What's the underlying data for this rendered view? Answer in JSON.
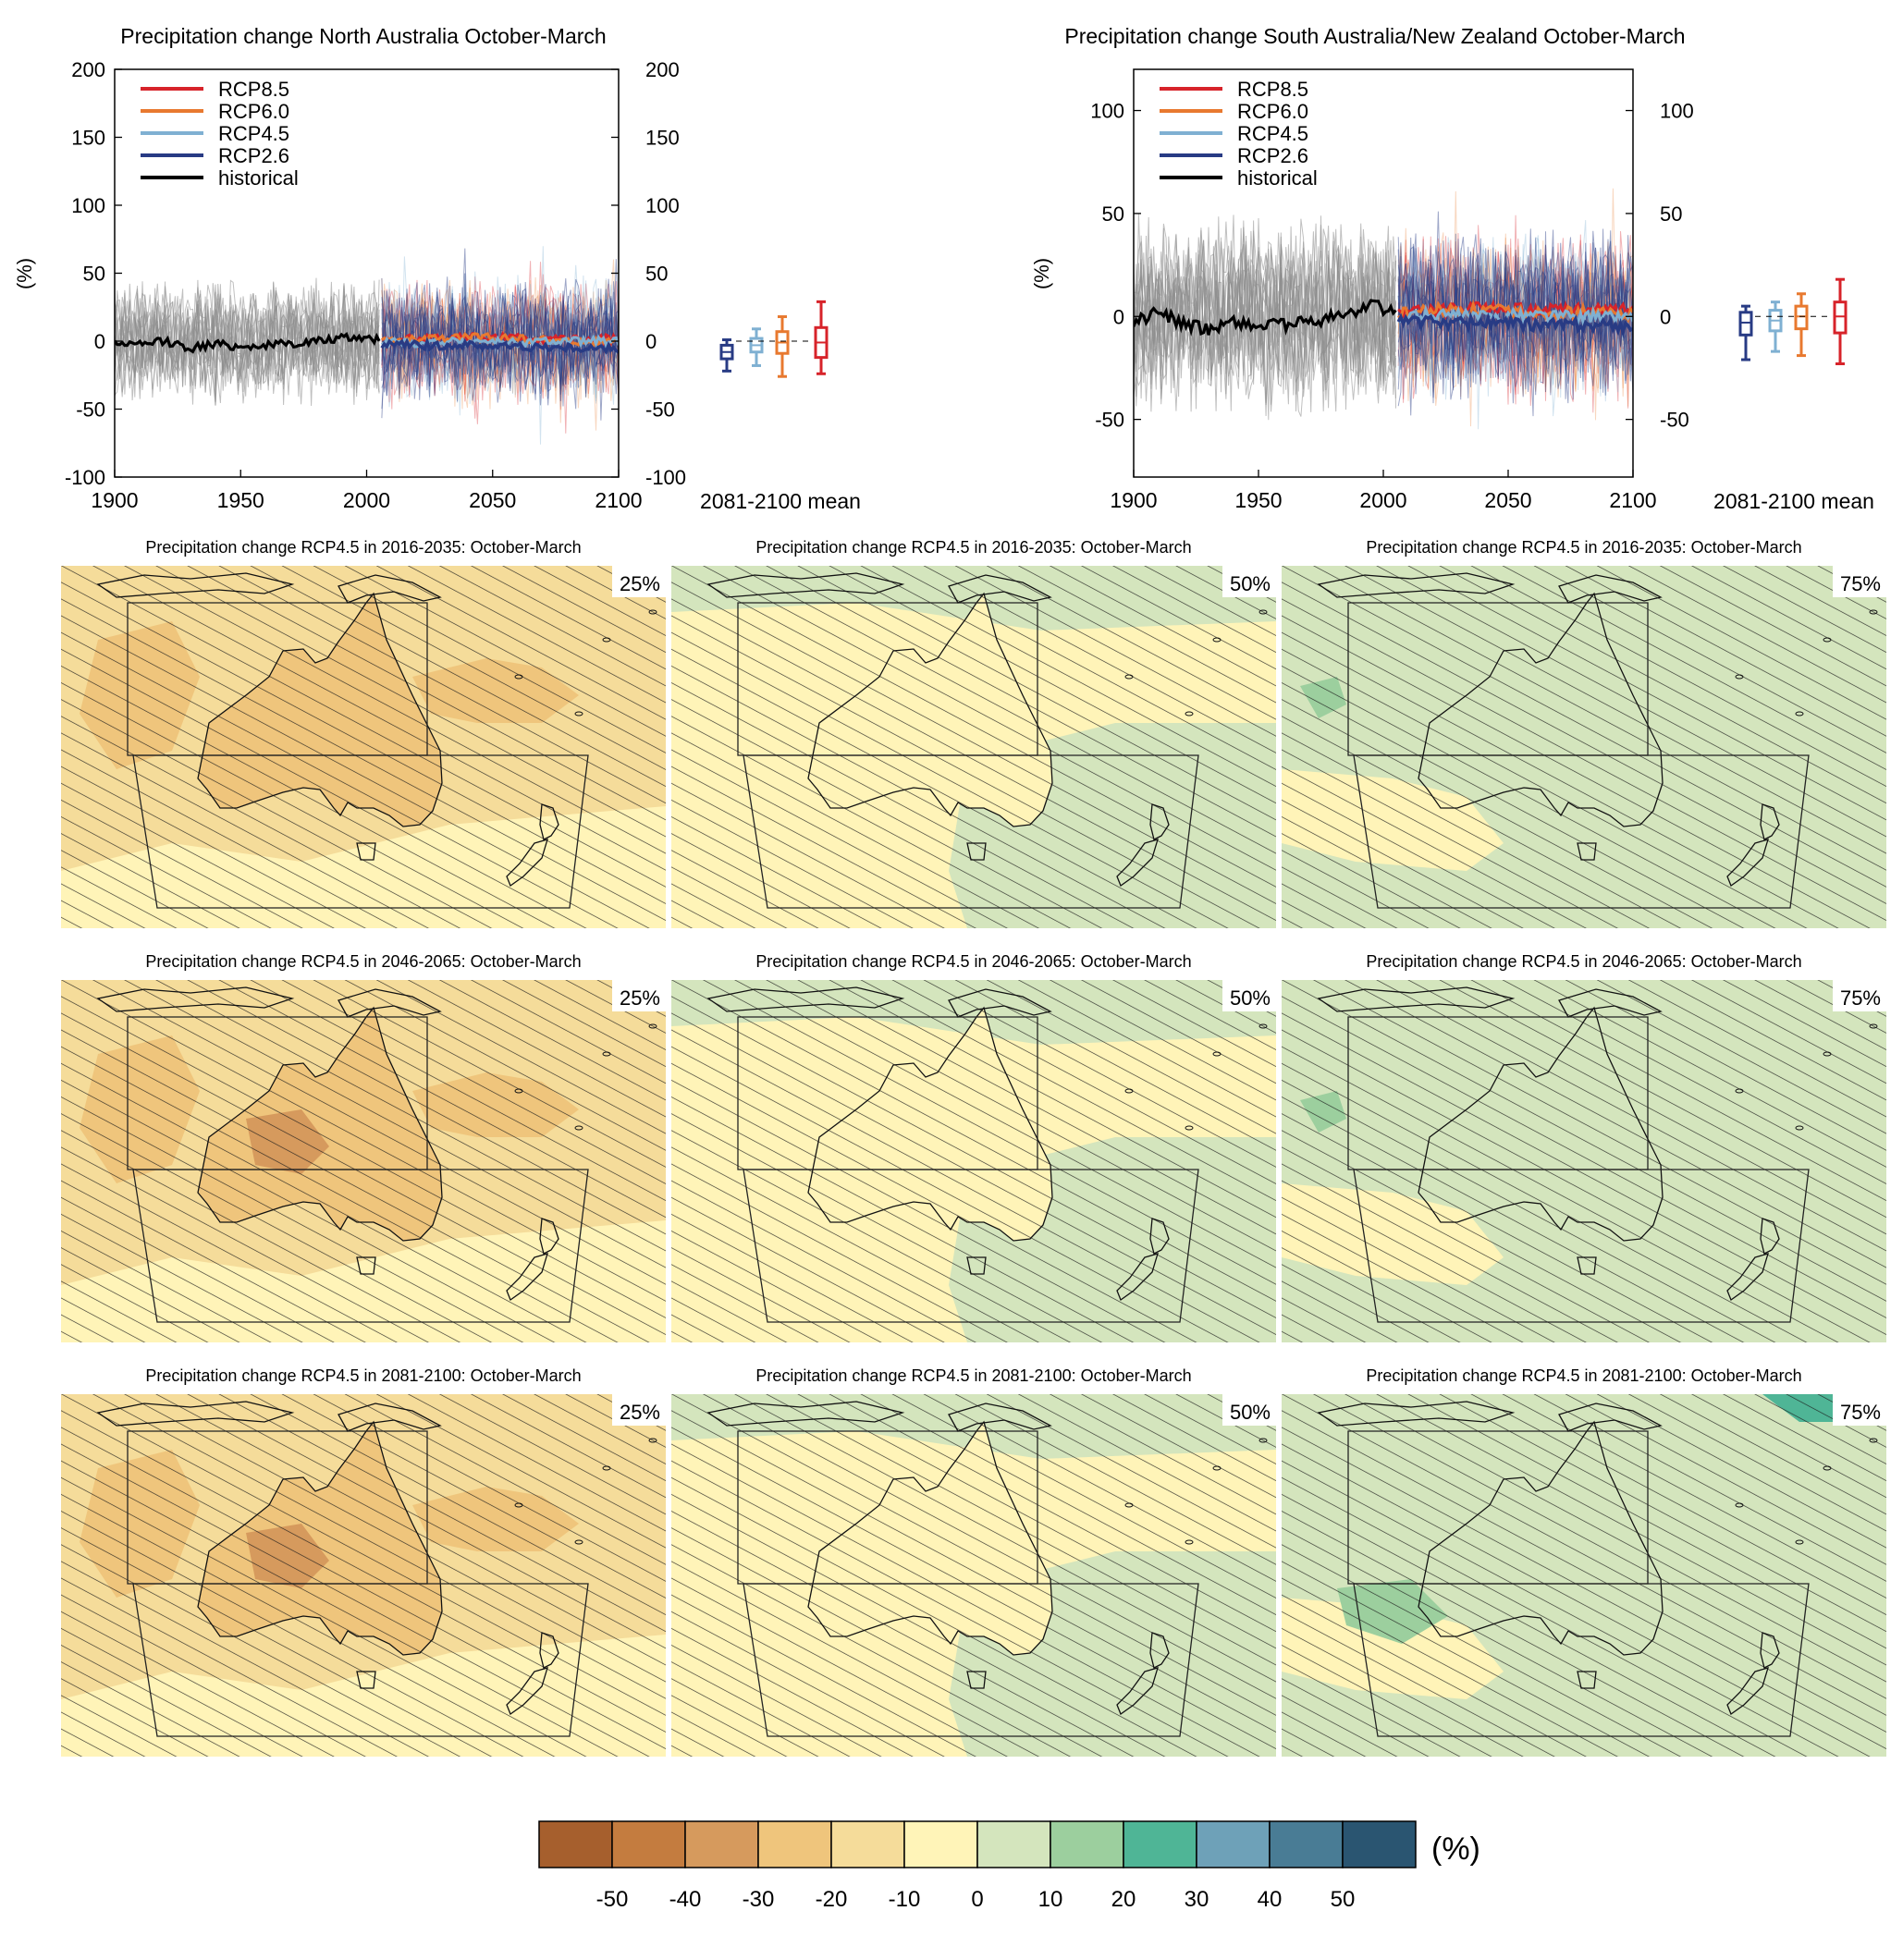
{
  "figure": {
    "series_colors": {
      "rcp85": "#d7232a",
      "rcp60": "#e8792f",
      "rcp45": "#7fb0d2",
      "rcp26": "#283b84",
      "historical": "#000000",
      "historical_spread": "#8c8c8c"
    }
  },
  "chart_data": [
    {
      "id": "north",
      "type": "line",
      "title": "Precipitation change North Australia October-March",
      "ylabel": "(%)",
      "xlim": [
        1900,
        2100
      ],
      "ylim": [
        -100,
        200
      ],
      "xticks": [
        1900,
        1950,
        2000,
        2050,
        2100
      ],
      "yticks": [
        -100,
        -50,
        0,
        50,
        100,
        150,
        200
      ],
      "legend": {
        "placement": "top-left",
        "entries": [
          "RCP8.5",
          "RCP6.0",
          "RCP4.5",
          "RCP2.6",
          "historical"
        ]
      },
      "historical_mean": {
        "x": [
          1900,
          1910,
          1920,
          1930,
          1940,
          1950,
          1960,
          1970,
          1980,
          1990,
          2000,
          2005
        ],
        "y": [
          -1,
          -3,
          0,
          -5,
          -2,
          -4,
          -3,
          -2,
          0,
          2,
          3,
          1
        ]
      },
      "historical_range": [
        -60,
        70
      ],
      "scenario_means": [
        {
          "name": "RCP8.5",
          "x": [
            2006,
            2020,
            2040,
            2060,
            2080,
            2100
          ],
          "y": [
            0,
            2,
            3,
            2,
            1,
            2
          ]
        },
        {
          "name": "RCP6.0",
          "x": [
            2006,
            2020,
            2040,
            2060,
            2080,
            2100
          ],
          "y": [
            0,
            1,
            3,
            2,
            0,
            -1
          ]
        },
        {
          "name": "RCP4.5",
          "x": [
            2006,
            2020,
            2040,
            2060,
            2080,
            2100
          ],
          "y": [
            0,
            -2,
            0,
            -1,
            0,
            0
          ]
        },
        {
          "name": "RCP2.6",
          "x": [
            2006,
            2020,
            2040,
            2060,
            2080,
            2100
          ],
          "y": [
            -2,
            -3,
            -3,
            -4,
            -5,
            -6
          ]
        }
      ],
      "scenario_range": [
        -70,
        110
      ],
      "boxplots": {
        "xlabel": "2081-2100 mean",
        "items": [
          {
            "name": "RCP2.6",
            "min": -22,
            "q1": -13,
            "median": -8,
            "q3": -3,
            "max": 1
          },
          {
            "name": "RCP4.5",
            "min": -18,
            "q1": -8,
            "median": -3,
            "q3": 2,
            "max": 9
          },
          {
            "name": "RCP6.0",
            "min": -26,
            "q1": -9,
            "median": -1,
            "q3": 7,
            "max": 18
          },
          {
            "name": "RCP8.5",
            "min": -24,
            "q1": -12,
            "median": -1,
            "q3": 10,
            "max": 29
          }
        ]
      }
    },
    {
      "id": "south",
      "type": "line",
      "title": "Precipitation change South Australia/New Zealand October-March",
      "ylabel": "(%)",
      "xlim": [
        1900,
        2100
      ],
      "ylim": [
        -78,
        120
      ],
      "xticks": [
        1900,
        1950,
        2000,
        2050,
        2100
      ],
      "yticks": [
        -50,
        0,
        50,
        100
      ],
      "legend": {
        "placement": "top-left",
        "entries": [
          "RCP8.5",
          "RCP6.0",
          "RCP4.5",
          "RCP2.6",
          "historical"
        ]
      },
      "historical_mean": {
        "x": [
          1900,
          1910,
          1920,
          1930,
          1940,
          1950,
          1960,
          1970,
          1980,
          1990,
          1995,
          2000,
          2005
        ],
        "y": [
          -3,
          2,
          -4,
          -6,
          -2,
          -5,
          -4,
          -3,
          0,
          2,
          8,
          3,
          1
        ]
      },
      "historical_range": [
        -55,
        80
      ],
      "scenario_means": [
        {
          "name": "RCP8.5",
          "x": [
            2006,
            2020,
            2040,
            2060,
            2080,
            2100
          ],
          "y": [
            2,
            3,
            4,
            3,
            3,
            4
          ]
        },
        {
          "name": "RCP6.0",
          "x": [
            2006,
            2020,
            2040,
            2060,
            2080,
            2100
          ],
          "y": [
            1,
            3,
            3,
            2,
            2,
            1
          ]
        },
        {
          "name": "RCP4.5",
          "x": [
            2006,
            2020,
            2040,
            2060,
            2080,
            2100
          ],
          "y": [
            0,
            1,
            0,
            1,
            0,
            0
          ]
        },
        {
          "name": "RCP2.6",
          "x": [
            2006,
            2020,
            2040,
            2060,
            2080,
            2100
          ],
          "y": [
            -2,
            -3,
            -3,
            -4,
            -4,
            -5
          ]
        }
      ],
      "scenario_range": [
        -60,
        100
      ],
      "boxplots": {
        "xlabel": "2081-2100 mean",
        "items": [
          {
            "name": "RCP2.6",
            "min": -21,
            "q1": -9,
            "median": -3,
            "q3": 2,
            "max": 5
          },
          {
            "name": "RCP4.5",
            "min": -17,
            "q1": -7,
            "median": -2,
            "q3": 3,
            "max": 7
          },
          {
            "name": "RCP6.0",
            "min": -19,
            "q1": -6,
            "median": 0,
            "q3": 5,
            "max": 11
          },
          {
            "name": "RCP8.5",
            "min": -23,
            "q1": -8,
            "median": 0,
            "q3": 7,
            "max": 18
          }
        ]
      }
    },
    {
      "id": "maps",
      "type": "heatmap",
      "panels": [
        {
          "title": "Precipitation change RCP4.5 in 2016-2035: October-March",
          "pct": "25%",
          "level": 0.2
        },
        {
          "title": "Precipitation change RCP4.5 in 2016-2035: October-March",
          "pct": "50%",
          "level": 0.45
        },
        {
          "title": "Precipitation change RCP4.5 in 2016-2035: October-March",
          "pct": "75%",
          "level": 0.8
        },
        {
          "title": "Precipitation change RCP4.5 in 2046-2065: October-March",
          "pct": "25%",
          "level": 0.1
        },
        {
          "title": "Precipitation change RCP4.5 in 2046-2065: October-March",
          "pct": "50%",
          "level": 0.45
        },
        {
          "title": "Precipitation change RCP4.5 in 2046-2065: October-March",
          "pct": "75%",
          "level": 0.8
        },
        {
          "title": "Precipitation change RCP4.5 in 2081-2100: October-March",
          "pct": "25%",
          "level": 0.05
        },
        {
          "title": "Precipitation change RCP4.5 in 2081-2100: October-March",
          "pct": "50%",
          "level": 0.4
        },
        {
          "title": "Precipitation change RCP4.5 in 2081-2100: October-March",
          "pct": "75%",
          "level": 0.85
        }
      ],
      "colorbar": {
        "unit": "(%)",
        "ticks": [
          "-50",
          "-40",
          "-30",
          "-20",
          "-10",
          "0",
          "10",
          "20",
          "30",
          "40",
          "50"
        ],
        "colors": [
          "#a65f2d",
          "#c47c3f",
          "#d69a5d",
          "#efc57c",
          "#f5dc9a",
          "#fff4b8",
          "#d4e5bd",
          "#9ccf9e",
          "#4fb596",
          "#6ea1b8",
          "#497c95",
          "#2a5571"
        ]
      }
    }
  ]
}
